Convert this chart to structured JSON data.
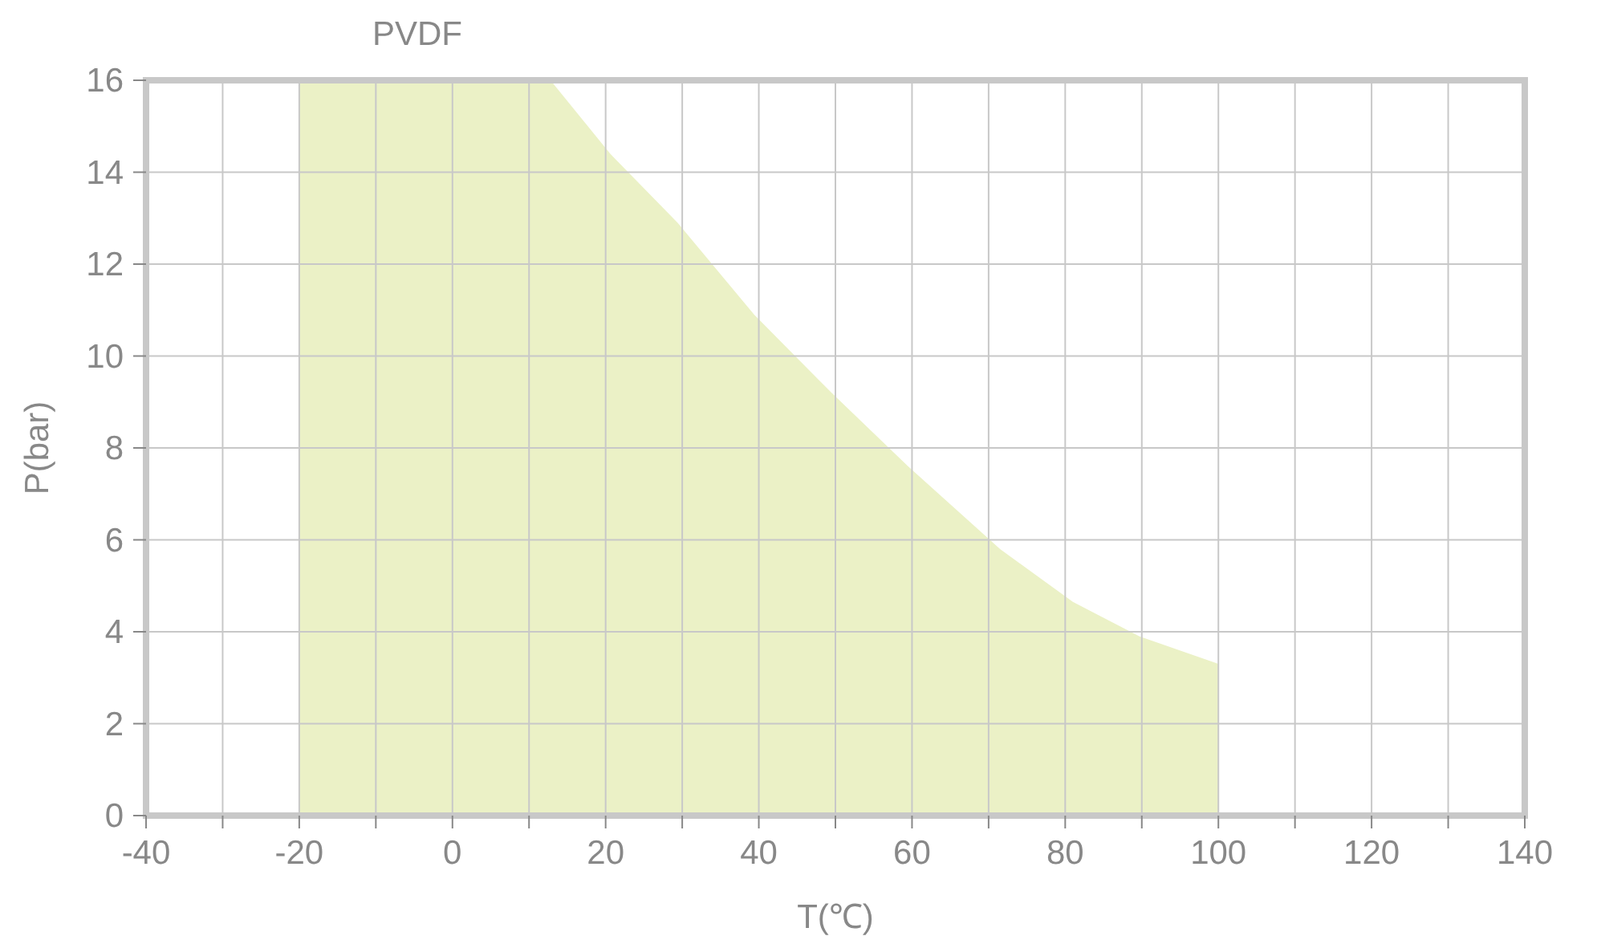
{
  "chart_data": {
    "type": "area",
    "title": "PVDF",
    "xlabel": "T(℃)",
    "ylabel": "P(bar)",
    "x": [
      -20,
      12.8,
      20.6,
      29.4,
      39.4,
      49.5,
      59.5,
      71.5,
      81,
      89.7,
      100
    ],
    "series": [
      {
        "color": "#ebf1c6",
        "values": [
          16,
          16,
          14.4,
          12.9,
          10.9,
          9.2,
          7.6,
          5.8,
          4.65,
          3.9,
          3.3
        ]
      }
    ],
    "xlim": [
      -40,
      140
    ],
    "xticks": [
      -40,
      {
        "value": -30,
        "label": null
      },
      -20,
      {
        "value": -10,
        "label": null
      },
      0,
      {
        "value": 10,
        "label": null
      },
      20,
      {
        "value": 30,
        "label": null
      },
      40,
      {
        "value": 50,
        "label": null
      },
      60,
      {
        "value": 70,
        "label": null
      },
      80,
      {
        "value": 90,
        "label": null
      },
      100,
      {
        "value": 110,
        "label": null
      },
      120,
      {
        "value": 130,
        "label": null
      },
      140
    ],
    "ylim": [
      0,
      16
    ],
    "yticks": [
      0,
      2,
      4,
      6,
      8,
      10,
      12,
      14,
      16
    ],
    "grid": true
  }
}
